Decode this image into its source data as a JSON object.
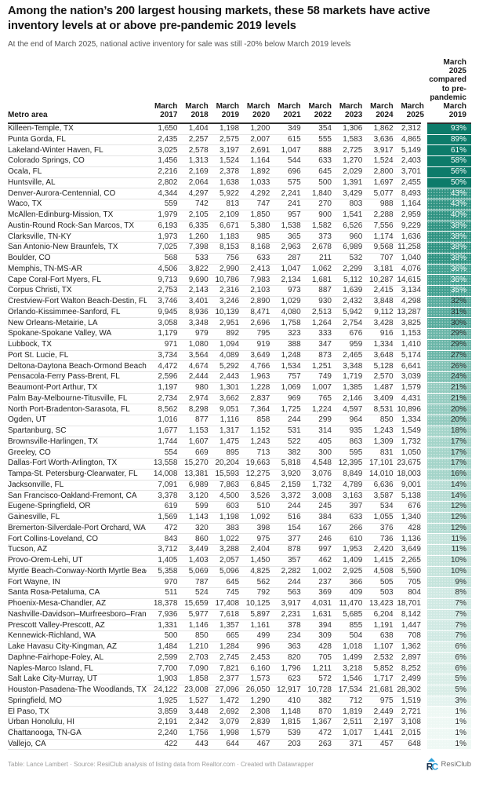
{
  "header": {
    "title": "Among the nation’s 200 largest housing markets, these 58 markets have active inventory levels at or above pre-pandemic 2019 levels",
    "subtitle": "At the end of March 2025, national active inventory for sale was still -20% below March 2019 levels"
  },
  "table": {
    "metro_col_header": "Metro area",
    "month_label": "March",
    "years": [
      "2017",
      "2018",
      "2019",
      "2020",
      "2021",
      "2022",
      "2023",
      "2024",
      "2025"
    ],
    "pct_col_header": "March 2025 compared to pre-pandemic March 2019"
  },
  "chart_data": {
    "type": "table",
    "title": "Among the nation’s 200 largest housing markets, these 58 markets have active inventory levels at or above pre-pandemic 2019 levels",
    "subtitle": "At the end of March 2025, national active inventory for sale was still -20% below March 2019 levels",
    "columns": [
      "Metro area",
      "March 2017",
      "March 2018",
      "March 2019",
      "March 2020",
      "March 2021",
      "March 2022",
      "March 2023",
      "March 2024",
      "March 2025",
      "March 2025 compared to pre-pandemic March 2019"
    ],
    "pct_white_text_min": 35,
    "pct_text_dark": "#2d2d2d",
    "pct_text_light": "#ffffff",
    "pct_color_scale": [
      {
        "min": 50,
        "bg": "#0d7b6a"
      },
      {
        "min": 38,
        "bg": "#2f9382"
      },
      {
        "min": 35,
        "bg": "#41a090"
      },
      {
        "min": 30,
        "bg": "#57ab9d"
      },
      {
        "min": 27,
        "bg": "#6bb6a8"
      },
      {
        "min": 24,
        "bg": "#80c1b4"
      },
      {
        "min": 20,
        "bg": "#93cbbf"
      },
      {
        "min": 16,
        "bg": "#a4d4c9"
      },
      {
        "min": 12,
        "bg": "#b6ddd4"
      },
      {
        "min": 9,
        "bg": "#c5e4dc"
      },
      {
        "min": 7,
        "bg": "#d0e9e3"
      },
      {
        "min": 5,
        "bg": "#daeee8"
      },
      {
        "min": 3,
        "bg": "#e4f3ef"
      },
      {
        "min": 0,
        "bg": "#eef8f4"
      }
    ],
    "rows": [
      {
        "metro": "Killeen-Temple, TX",
        "values": [
          1650,
          1404,
          1198,
          1200,
          349,
          354,
          1306,
          1862,
          2312
        ],
        "pct": 93
      },
      {
        "metro": "Punta Gorda, FL",
        "values": [
          2435,
          2257,
          2575,
          2007,
          615,
          555,
          1583,
          3636,
          4865
        ],
        "pct": 89
      },
      {
        "metro": "Lakeland-Winter Haven, FL",
        "values": [
          3025,
          2578,
          3197,
          2691,
          1047,
          888,
          2725,
          3917,
          5149
        ],
        "pct": 61
      },
      {
        "metro": "Colorado Springs, CO",
        "values": [
          1456,
          1313,
          1524,
          1164,
          544,
          633,
          1270,
          1524,
          2403
        ],
        "pct": 58
      },
      {
        "metro": "Ocala, FL",
        "values": [
          2216,
          2169,
          2378,
          1892,
          696,
          645,
          2029,
          2800,
          3701
        ],
        "pct": 56
      },
      {
        "metro": "Huntsville, AL",
        "values": [
          2802,
          2064,
          1638,
          1033,
          575,
          500,
          1391,
          1697,
          2455
        ],
        "pct": 50
      },
      {
        "metro": "Denver-Aurora-Centennial, CO",
        "values": [
          4344,
          4297,
          5922,
          4292,
          2241,
          1840,
          3429,
          5077,
          8493
        ],
        "pct": 43
      },
      {
        "metro": "Waco, TX",
        "values": [
          559,
          742,
          813,
          747,
          241,
          270,
          803,
          988,
          1164
        ],
        "pct": 43
      },
      {
        "metro": "McAllen-Edinburg-Mission, TX",
        "values": [
          1979,
          2105,
          2109,
          1850,
          957,
          900,
          1541,
          2288,
          2959
        ],
        "pct": 40
      },
      {
        "metro": "Austin-Round Rock-San Marcos, TX",
        "values": [
          6193,
          6335,
          6671,
          5380,
          1538,
          1582,
          6526,
          7556,
          9229
        ],
        "pct": 38
      },
      {
        "metro": "Clarksville, TN-KY",
        "values": [
          1973,
          1260,
          1183,
          985,
          365,
          373,
          960,
          1174,
          1636
        ],
        "pct": 38
      },
      {
        "metro": "San Antonio-New Braunfels, TX",
        "values": [
          7025,
          7398,
          8153,
          8168,
          2963,
          2678,
          6989,
          9568,
          11258
        ],
        "pct": 38
      },
      {
        "metro": "Boulder, CO",
        "values": [
          568,
          533,
          756,
          633,
          287,
          211,
          532,
          707,
          1040
        ],
        "pct": 38
      },
      {
        "metro": "Memphis, TN-MS-AR",
        "values": [
          4506,
          3822,
          2990,
          2413,
          1047,
          1062,
          2299,
          3181,
          4076
        ],
        "pct": 36
      },
      {
        "metro": "Cape Coral-Fort Myers, FL",
        "values": [
          9713,
          9690,
          10786,
          7983,
          2134,
          1681,
          5112,
          10287,
          14615
        ],
        "pct": 36
      },
      {
        "metro": "Corpus Christi, TX",
        "values": [
          2753,
          2143,
          2316,
          2103,
          973,
          887,
          1639,
          2415,
          3134
        ],
        "pct": 35
      },
      {
        "metro": "Crestview-Fort Walton Beach-Destin, FL",
        "values": [
          3746,
          3401,
          3246,
          2890,
          1029,
          930,
          2432,
          3848,
          4298
        ],
        "pct": 32
      },
      {
        "metro": "Orlando-Kissimmee-Sanford, FL",
        "values": [
          9945,
          8936,
          10139,
          8471,
          4080,
          2513,
          5942,
          9112,
          13287
        ],
        "pct": 31
      },
      {
        "metro": "New Orleans-Metairie, LA",
        "values": [
          3058,
          3348,
          2951,
          2696,
          1758,
          1264,
          2754,
          3428,
          3825
        ],
        "pct": 30
      },
      {
        "metro": "Spokane-Spokane Valley, WA",
        "values": [
          1179,
          979,
          892,
          795,
          323,
          333,
          676,
          916,
          1153
        ],
        "pct": 29
      },
      {
        "metro": "Lubbock, TX",
        "values": [
          971,
          1080,
          1094,
          919,
          388,
          347,
          959,
          1334,
          1410
        ],
        "pct": 29
      },
      {
        "metro": "Port St. Lucie, FL",
        "values": [
          3734,
          3564,
          4089,
          3649,
          1248,
          873,
          2465,
          3648,
          5174
        ],
        "pct": 27
      },
      {
        "metro": "Deltona-Daytona Beach-Ormond Beach, FL",
        "values": [
          4472,
          4674,
          5292,
          4766,
          1534,
          1251,
          3348,
          5128,
          6641
        ],
        "pct": 26
      },
      {
        "metro": "Pensacola-Ferry Pass-Brent, FL",
        "values": [
          2596,
          2444,
          2443,
          1963,
          757,
          749,
          1719,
          2570,
          3039
        ],
        "pct": 24
      },
      {
        "metro": "Beaumont-Port Arthur, TX",
        "values": [
          1197,
          980,
          1301,
          1228,
          1069,
          1007,
          1385,
          1487,
          1579
        ],
        "pct": 21
      },
      {
        "metro": "Palm Bay-Melbourne-Titusville, FL",
        "values": [
          2734,
          2974,
          3662,
          2837,
          969,
          765,
          2146,
          3409,
          4431
        ],
        "pct": 21
      },
      {
        "metro": "North Port-Bradenton-Sarasota, FL",
        "values": [
          8562,
          8298,
          9051,
          7364,
          1725,
          1224,
          4597,
          8531,
          10896
        ],
        "pct": 20
      },
      {
        "metro": "Ogden, UT",
        "values": [
          1016,
          877,
          1116,
          858,
          244,
          299,
          964,
          850,
          1334
        ],
        "pct": 20
      },
      {
        "metro": "Spartanburg, SC",
        "values": [
          1677,
          1153,
          1317,
          1152,
          531,
          314,
          935,
          1243,
          1549
        ],
        "pct": 18
      },
      {
        "metro": "Brownsville-Harlingen, TX",
        "values": [
          1744,
          1607,
          1475,
          1243,
          522,
          405,
          863,
          1309,
          1732
        ],
        "pct": 17
      },
      {
        "metro": "Greeley, CO",
        "values": [
          554,
          669,
          895,
          713,
          382,
          300,
          595,
          831,
          1050
        ],
        "pct": 17
      },
      {
        "metro": "Dallas-Fort Worth-Arlington, TX",
        "values": [
          13558,
          15270,
          20204,
          19663,
          5818,
          4548,
          12395,
          17101,
          23675
        ],
        "pct": 17
      },
      {
        "metro": "Tampa-St. Petersburg-Clearwater, FL",
        "values": [
          14008,
          13381,
          15593,
          12275,
          3920,
          3076,
          8849,
          14010,
          18003
        ],
        "pct": 16
      },
      {
        "metro": "Jacksonville, FL",
        "values": [
          7091,
          6989,
          7863,
          6845,
          2159,
          1732,
          4789,
          6636,
          9001
        ],
        "pct": 14
      },
      {
        "metro": "San Francisco-Oakland-Fremont, CA",
        "values": [
          3378,
          3120,
          4500,
          3526,
          3372,
          3008,
          3163,
          3587,
          5138
        ],
        "pct": 14
      },
      {
        "metro": "Eugene-Springfield, OR",
        "values": [
          619,
          599,
          603,
          510,
          244,
          245,
          397,
          534,
          676
        ],
        "pct": 12
      },
      {
        "metro": "Gainesville, FL",
        "values": [
          1569,
          1143,
          1198,
          1092,
          516,
          384,
          633,
          1055,
          1340
        ],
        "pct": 12
      },
      {
        "metro": "Bremerton-Silverdale-Port Orchard, WA",
        "values": [
          472,
          320,
          383,
          398,
          154,
          167,
          266,
          376,
          428
        ],
        "pct": 12
      },
      {
        "metro": "Fort Collins-Loveland, CO",
        "values": [
          843,
          860,
          1022,
          975,
          377,
          246,
          610,
          736,
          1136
        ],
        "pct": 11
      },
      {
        "metro": "Tucson, AZ",
        "values": [
          3712,
          3449,
          3288,
          2404,
          878,
          997,
          1953,
          2420,
          3649
        ],
        "pct": 11
      },
      {
        "metro": "Provo-Orem-Lehi, UT",
        "values": [
          1405,
          1403,
          2057,
          1450,
          357,
          462,
          1409,
          1415,
          2265
        ],
        "pct": 10
      },
      {
        "metro": "Myrtle Beach-Conway-North Myrtle Beach, SC",
        "values": [
          5358,
          5069,
          5096,
          4825,
          2282,
          1002,
          2925,
          4508,
          5590
        ],
        "pct": 10
      },
      {
        "metro": "Fort Wayne, IN",
        "values": [
          970,
          787,
          645,
          562,
          244,
          237,
          366,
          505,
          705
        ],
        "pct": 9
      },
      {
        "metro": "Santa Rosa-Petaluma, CA",
        "values": [
          511,
          524,
          745,
          792,
          563,
          369,
          409,
          503,
          804
        ],
        "pct": 8
      },
      {
        "metro": "Phoenix-Mesa-Chandler, AZ",
        "values": [
          18378,
          15659,
          17408,
          10125,
          3917,
          4031,
          11470,
          13423,
          18701
        ],
        "pct": 7
      },
      {
        "metro": "Nashville-Davidson–Murfreesboro–Franklin, TN",
        "values": [
          7936,
          5977,
          7618,
          5897,
          2231,
          1631,
          5685,
          6204,
          8142
        ],
        "pct": 7
      },
      {
        "metro": "Prescott Valley-Prescott, AZ",
        "values": [
          1331,
          1146,
          1357,
          1161,
          378,
          394,
          855,
          1191,
          1447
        ],
        "pct": 7
      },
      {
        "metro": "Kennewick-Richland, WA",
        "values": [
          500,
          850,
          665,
          499,
          234,
          309,
          504,
          638,
          708
        ],
        "pct": 7
      },
      {
        "metro": "Lake Havasu City-Kingman, AZ",
        "values": [
          1484,
          1210,
          1284,
          996,
          363,
          428,
          1018,
          1107,
          1362
        ],
        "pct": 6
      },
      {
        "metro": "Daphne-Fairhope-Foley, AL",
        "values": [
          2599,
          2703,
          2745,
          2453,
          820,
          705,
          1499,
          2532,
          2897
        ],
        "pct": 6
      },
      {
        "metro": "Naples-Marco Island, FL",
        "values": [
          7700,
          7090,
          7821,
          6160,
          1796,
          1211,
          3218,
          5852,
          8252
        ],
        "pct": 6
      },
      {
        "metro": "Salt Lake City-Murray, UT",
        "values": [
          1903,
          1858,
          2377,
          1573,
          623,
          572,
          1546,
          1717,
          2499
        ],
        "pct": 5
      },
      {
        "metro": "Houston-Pasadena-The Woodlands, TX",
        "values": [
          24122,
          23008,
          27096,
          26050,
          12917,
          10728,
          17534,
          21681,
          28302
        ],
        "pct": 5
      },
      {
        "metro": "Springfield, MO",
        "values": [
          1925,
          1527,
          1472,
          1290,
          410,
          382,
          712,
          975,
          1519
        ],
        "pct": 3
      },
      {
        "metro": "El Paso, TX",
        "values": [
          3859,
          3448,
          2692,
          2308,
          1148,
          870,
          1819,
          2449,
          2721
        ],
        "pct": 1
      },
      {
        "metro": "Urban Honolulu, HI",
        "values": [
          2191,
          2342,
          3079,
          2839,
          1815,
          1367,
          2511,
          2197,
          3108
        ],
        "pct": 1
      },
      {
        "metro": "Chattanooga, TN-GA",
        "values": [
          2240,
          1756,
          1998,
          1579,
          539,
          472,
          1017,
          1441,
          2015
        ],
        "pct": 1
      },
      {
        "metro": "Vallejo, CA",
        "values": [
          422,
          443,
          644,
          467,
          203,
          263,
          371,
          457,
          648
        ],
        "pct": 1
      }
    ]
  },
  "footer": {
    "credit": "Table: Lance Lambert · Source: ResiClub analysis of listing data from Realtor.com · Created with Datawrapper",
    "logo_text": "ResiClub"
  },
  "colors": {
    "logo_dark": "#16314d",
    "logo_blue": "#2a9fd8",
    "header_rule": "#2e2e2e",
    "row_rule": "#e4e4e4",
    "scale_dark": "#0d7b6a",
    "scale_light": "#eef8f4"
  }
}
